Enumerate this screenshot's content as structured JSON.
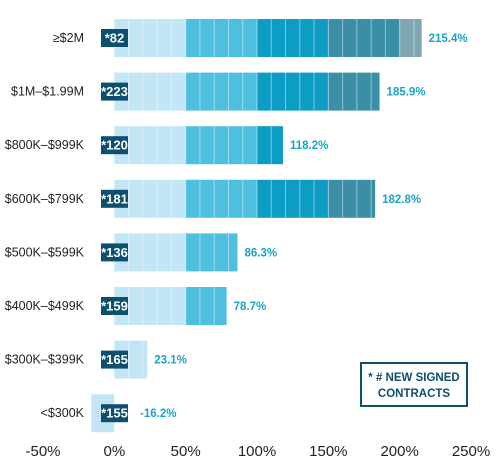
{
  "chart_data": {
    "type": "bar",
    "orientation": "horizontal",
    "categories": [
      "≥$2M",
      "$1M–$1.99M",
      "$800K–$999K",
      "$600K–$799K",
      "$500K–$599K",
      "$400K–$499K",
      "$300K–$399K",
      "<$300K"
    ],
    "values": [
      215.4,
      185.9,
      118.2,
      182.8,
      86.3,
      78.7,
      23.1,
      -16.2
    ],
    "value_labels": [
      "215.4%",
      "185.9%",
      "118.2%",
      "182.8%",
      "86.3%",
      "78.7%",
      "23.1%",
      "-16.2%"
    ],
    "counts": [
      "*82",
      "*223",
      "*120",
      "*181",
      "*136",
      "*159",
      "*165",
      "*155"
    ],
    "xlim": [
      -50,
      250
    ],
    "x_ticks": [
      "-50%",
      "0%",
      "50%",
      "100%",
      "150%",
      "200%",
      "250%"
    ],
    "legend": {
      "line1": "* # NEW SIGNED",
      "line2": "CONTRACTS",
      "placement": "bottom-right"
    },
    "grid": false,
    "colors": {
      "band_0_50": "#c2e6f5",
      "band_50_100": "#4fbfe0",
      "band_100_150": "#0d9cc4",
      "band_150_200": "#3a8fa6",
      "band_200_250": "#7fa7b2",
      "negative": "#c2e6f5",
      "count_box": "#0d4f6e",
      "value_text": "#1aa3c6",
      "legend_border": "#0d4f6e",
      "axis_text": "#222222"
    }
  }
}
